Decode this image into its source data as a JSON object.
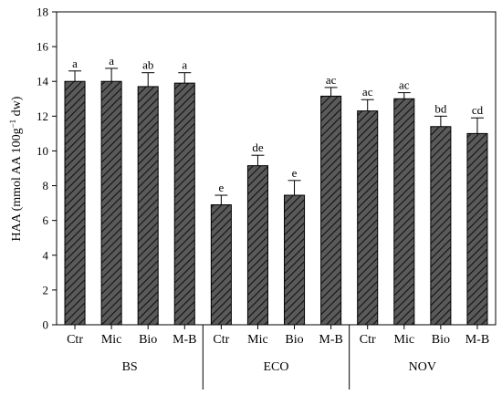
{
  "chart_data": {
    "type": "bar",
    "ylabel": "HAA (mmol AA 100g",
    "ylabel_sup": "−1",
    "ylabel_tail": " dw)",
    "ylim": [
      0,
      18
    ],
    "yticks": [
      "0",
      "2",
      "4",
      "6",
      "8",
      "10",
      "12",
      "14",
      "16",
      "18"
    ],
    "ytick_values": [
      0,
      2,
      4,
      6,
      8,
      10,
      12,
      14,
      16,
      18
    ],
    "categories": [
      "Ctr",
      "Mic",
      "Bio",
      "M-B",
      "Ctr",
      "Mic",
      "Bio",
      "M-B",
      "Ctr",
      "Mic",
      "Bio",
      "M-B"
    ],
    "groups": [
      {
        "name": "BS",
        "indices": [
          0,
          1,
          2,
          3
        ]
      },
      {
        "name": "ECO",
        "indices": [
          4,
          5,
          6,
          7
        ]
      },
      {
        "name": "NOV",
        "indices": [
          8,
          9,
          10,
          11
        ]
      }
    ],
    "values": [
      14.0,
      14.0,
      13.7,
      13.9,
      6.9,
      9.15,
      7.45,
      13.15,
      12.3,
      13.0,
      11.4,
      11.0
    ],
    "errors": [
      0.6,
      0.75,
      0.8,
      0.6,
      0.55,
      0.6,
      0.85,
      0.5,
      0.65,
      0.35,
      0.6,
      0.9
    ],
    "letters": [
      "a",
      "a",
      "ab",
      "a",
      "e",
      "de",
      "e",
      "ac",
      "ac",
      "ac",
      "bd",
      "cd"
    ],
    "bar_fill": "#555555",
    "hatch": "diagonal",
    "grid": false,
    "legend": "none"
  }
}
